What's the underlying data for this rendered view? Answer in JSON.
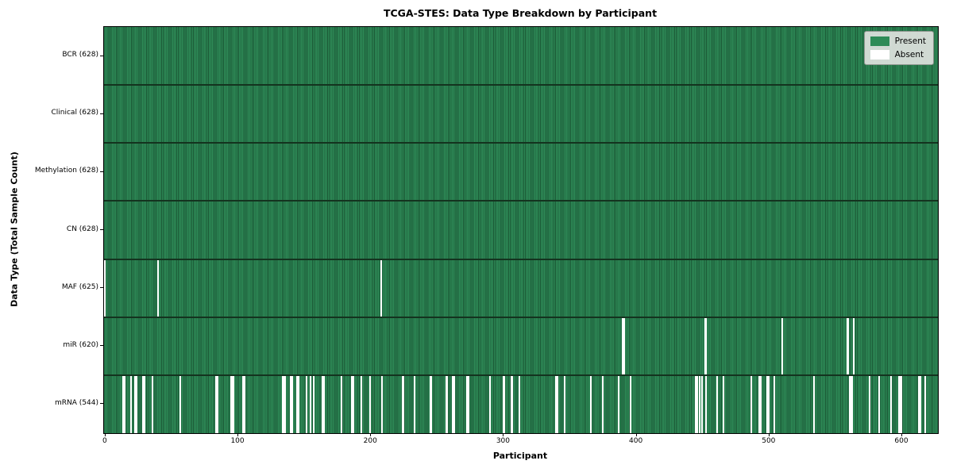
{
  "chart_data": {
    "type": "heatmap",
    "title": "TCGA-STES: Data Type Breakdown by Participant",
    "xlabel": "Participant",
    "ylabel": "Data Type (Total Sample Count)",
    "n_participants": 628,
    "xlim": [
      0,
      628
    ],
    "x_ticks": [
      0,
      100,
      200,
      300,
      400,
      500,
      600
    ],
    "grid": false,
    "colors": {
      "present": "#2e8b57",
      "absent": "#ffffff",
      "bar_edge": "#1a5634",
      "row_separator": "#14331f",
      "legend_background": "#dee2de"
    },
    "legend": {
      "position": "upper right",
      "entries": [
        {
          "label": "Present",
          "color": "#2e8b57"
        },
        {
          "label": "Absent",
          "color": "#ffffff"
        }
      ]
    },
    "rows": [
      {
        "name": "BCR",
        "label": "BCR (628)",
        "present_count": 628,
        "absent_count": 0,
        "absent_participants": []
      },
      {
        "name": "Clinical",
        "label": "Clinical (628)",
        "present_count": 628,
        "absent_count": 0,
        "absent_participants": []
      },
      {
        "name": "Methylation",
        "label": "Methylation (628)",
        "present_count": 628,
        "absent_count": 0,
        "absent_participants": []
      },
      {
        "name": "CN",
        "label": "CN (628)",
        "present_count": 628,
        "absent_count": 0,
        "absent_participants": []
      },
      {
        "name": "MAF",
        "label": "MAF (625)",
        "present_count": 625,
        "absent_count": 3,
        "absent_participants": [
          0,
          40,
          208
        ]
      },
      {
        "name": "miR",
        "label": "miR (620)",
        "present_count": 620,
        "absent_count": 8,
        "absent_participants": [
          390,
          391,
          452,
          453,
          510,
          559,
          560,
          564
        ]
      },
      {
        "name": "mRNA",
        "label": "mRNA (544)",
        "present_count": 544,
        "absent_count": 84,
        "absent_participants": [
          14,
          15,
          20,
          23,
          24,
          29,
          30,
          36,
          57,
          84,
          85,
          95,
          96,
          97,
          104,
          105,
          134,
          135,
          136,
          140,
          141,
          145,
          146,
          152,
          155,
          157,
          164,
          165,
          178,
          186,
          187,
          193,
          200,
          209,
          224,
          225,
          233,
          245,
          246,
          257,
          258,
          262,
          263,
          273,
          274,
          290,
          300,
          301,
          306,
          307,
          312,
          340,
          341,
          346,
          366,
          375,
          387,
          396,
          445,
          446,
          448,
          450,
          453,
          461,
          466,
          487,
          493,
          494,
          499,
          500,
          504,
          534,
          561,
          562,
          563,
          576,
          583,
          592,
          598,
          599,
          600,
          613,
          614,
          618
        ]
      }
    ]
  }
}
